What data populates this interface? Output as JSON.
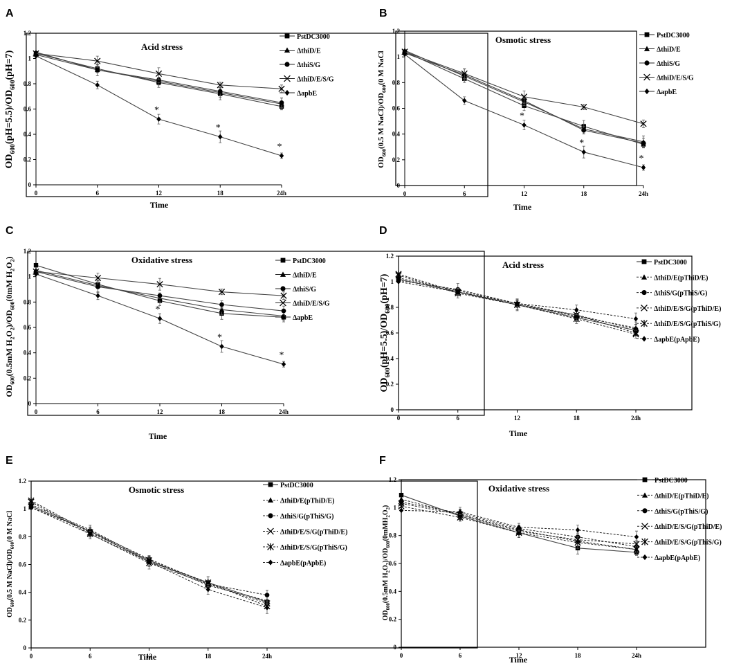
{
  "chart_data": [
    {
      "panel": "A",
      "type": "line",
      "title": "Acid stress",
      "xlabel": "Time",
      "ylabel": {
        "main": "OD",
        "sub1": "600",
        "mid": "(pH=5.5)/OD",
        "sub2": "600",
        "tail": "(pH=7)"
      },
      "x": [
        0,
        6,
        12,
        18,
        24
      ],
      "x_tick_labels": [
        "0",
        "6",
        "12",
        "18",
        "24h"
      ],
      "ylim": [
        0,
        1.2
      ],
      "y_ticks": [
        "0",
        "0.2",
        "0.4",
        "0.6",
        "0.8",
        "1",
        "1.2"
      ],
      "series": [
        {
          "name": "PstDC3000",
          "marker": "square",
          "dashed": false,
          "values": [
            1.04,
            0.92,
            0.81,
            0.72,
            0.62
          ]
        },
        {
          "name": "ΔthiD/E",
          "marker": "triangle",
          "dashed": false,
          "values": [
            1.05,
            0.91,
            0.82,
            0.73,
            0.64
          ]
        },
        {
          "name": "ΔthiS/G",
          "marker": "circle",
          "dashed": false,
          "values": [
            1.03,
            0.91,
            0.83,
            0.74,
            0.65
          ]
        },
        {
          "name": "ΔthiD/E/S/G",
          "marker": "x",
          "dashed": false,
          "values": [
            1.04,
            0.98,
            0.88,
            0.79,
            0.76
          ]
        },
        {
          "name": "ΔapbE",
          "marker": "diamond",
          "dashed": false,
          "values": [
            1.02,
            0.79,
            0.52,
            0.38,
            0.23
          ]
        }
      ],
      "annotations": [
        "*",
        "*",
        "*"
      ]
    },
    {
      "panel": "B",
      "type": "line",
      "title": "Osmotic stress",
      "xlabel": "Time",
      "ylabel": {
        "main": "OD",
        "sub1": "600",
        "mid": "(0.5 M NaCl)/OD",
        "sub2": "600",
        "tail": "(0 M NaCl"
      },
      "x": [
        0,
        6,
        12,
        18,
        24
      ],
      "x_tick_labels": [
        "0",
        "6",
        "12",
        "18",
        "24h"
      ],
      "ylim": [
        0,
        1.2
      ],
      "y_ticks": [
        "0",
        "0.2",
        "0.4",
        "0.6",
        "0.8",
        "1",
        "1.2"
      ],
      "series": [
        {
          "name": "PstDC3000",
          "marker": "square",
          "dashed": false,
          "values": [
            1.04,
            0.83,
            0.62,
            0.46,
            0.32
          ]
        },
        {
          "name": "ΔthiD/E",
          "marker": "triangle",
          "dashed": false,
          "values": [
            1.05,
            0.85,
            0.65,
            0.44,
            0.34
          ]
        },
        {
          "name": "ΔthiS/G",
          "marker": "circle",
          "dashed": false,
          "values": [
            1.03,
            0.86,
            0.66,
            0.43,
            0.33
          ]
        },
        {
          "name": "ΔthiD/E/S/G",
          "marker": "x",
          "dashed": false,
          "values": [
            1.04,
            0.87,
            0.69,
            0.61,
            0.48
          ]
        },
        {
          "name": "ΔapbE",
          "marker": "diamond",
          "dashed": false,
          "values": [
            1.02,
            0.66,
            0.47,
            0.26,
            0.14
          ]
        }
      ],
      "annotations": [
        "*",
        "*",
        "*"
      ]
    },
    {
      "panel": "C",
      "type": "line",
      "title": "Oxidative stress",
      "xlabel": "Time",
      "ylabel": {
        "main": "OD",
        "sub1": "600",
        "mid": "(0.5mM H",
        "sub2": "2",
        "tail": "O",
        "sub3": "2",
        "tail2": ")/OD",
        "sub4": "600",
        "tail3": "(0mM H",
        "sub5": "2",
        "tail4": "O",
        "sub6": "2",
        "tail5": ")"
      },
      "x": [
        0,
        6,
        12,
        18,
        24
      ],
      "x_tick_labels": [
        "0",
        "6",
        "12",
        "18",
        "24h"
      ],
      "ylim": [
        0,
        1.2
      ],
      "y_ticks": [
        "0",
        "0.2",
        "0.4",
        "0.6",
        "0.8",
        "1",
        "1.2"
      ],
      "series": [
        {
          "name": "PstDC3000",
          "marker": "square",
          "dashed": false,
          "values": [
            1.09,
            0.94,
            0.81,
            0.71,
            0.68
          ]
        },
        {
          "name": "ΔthiD/E",
          "marker": "triangle",
          "dashed": false,
          "values": [
            1.05,
            0.93,
            0.83,
            0.74,
            0.69
          ]
        },
        {
          "name": "ΔthiS/G",
          "marker": "circle",
          "dashed": false,
          "values": [
            1.04,
            0.92,
            0.85,
            0.78,
            0.73
          ]
        },
        {
          "name": "ΔthiD/E/S/G",
          "marker": "x",
          "dashed": false,
          "values": [
            1.04,
            0.99,
            0.94,
            0.88,
            0.85
          ]
        },
        {
          "name": "ΔapbE",
          "marker": "diamond",
          "dashed": false,
          "values": [
            1.02,
            0.85,
            0.67,
            0.45,
            0.31
          ]
        }
      ],
      "annotations": [
        "*",
        "*",
        "*"
      ]
    },
    {
      "panel": "D",
      "type": "line",
      "title": "Acid stress",
      "xlabel": "Time",
      "ylabel": {
        "main": "OD",
        "sub1": "600",
        "mid": "(pH=5.5)/OD",
        "sub2": "600",
        "tail": "(pH=7)"
      },
      "x": [
        0,
        6,
        12,
        18,
        24
      ],
      "x_tick_labels": [
        "0",
        "6",
        "12",
        "18",
        "24h"
      ],
      "ylim": [
        0,
        1.2
      ],
      "y_ticks": [
        "0",
        "0.2",
        "0.4",
        "0.6",
        "0.8",
        "1",
        "1.2"
      ],
      "series": [
        {
          "name": "PstDC3000",
          "marker": "square",
          "dashed": false,
          "values": [
            1.02,
            0.92,
            0.82,
            0.72,
            0.62
          ]
        },
        {
          "name": "ΔthiD/E(pThiD/E)",
          "marker": "triangle",
          "dashed": true,
          "values": [
            1.03,
            0.93,
            0.83,
            0.73,
            0.64
          ]
        },
        {
          "name": "ΔthiS/G(pThiS/G)",
          "marker": "circle",
          "dashed": true,
          "values": [
            1.01,
            0.94,
            0.83,
            0.74,
            0.63
          ]
        },
        {
          "name": "ΔthiD/E/S/G(pThiD/E)",
          "marker": "x",
          "dashed": true,
          "values": [
            1.05,
            0.91,
            0.82,
            0.71,
            0.59
          ]
        },
        {
          "name": "ΔthiD/E/S/G(pThiS/G)",
          "marker": "asterisk",
          "dashed": true,
          "values": [
            1.06,
            0.92,
            0.82,
            0.74,
            0.6
          ]
        },
        {
          "name": "ΔapbE(pApbE)",
          "marker": "diamond",
          "dashed": true,
          "values": [
            1.0,
            0.92,
            0.83,
            0.78,
            0.71
          ]
        }
      ]
    },
    {
      "panel": "E",
      "type": "line",
      "title": "Osmotic stress",
      "xlabel": "Time",
      "ylabel": {
        "main": "OD",
        "sub1": "600",
        "mid": "(0.5 M NaCl)/OD",
        "sub2": "600",
        "tail": "(0 M NaCl"
      },
      "x": [
        0,
        6,
        12,
        18,
        24
      ],
      "x_tick_labels": [
        "0",
        "6",
        "12",
        "18",
        "24h"
      ],
      "ylim": [
        0,
        1.2
      ],
      "y_ticks": [
        "0",
        "0.2",
        "0.4",
        "0.6",
        "0.8",
        "1",
        "1.2"
      ],
      "series": [
        {
          "name": "PstDC3000",
          "marker": "square",
          "dashed": false,
          "values": [
            1.02,
            0.84,
            0.62,
            0.47,
            0.33
          ]
        },
        {
          "name": "ΔthiD/E(pThiD/E)",
          "marker": "triangle",
          "dashed": true,
          "values": [
            1.03,
            0.85,
            0.63,
            0.45,
            0.34
          ]
        },
        {
          "name": "ΔthiS/G(pThiS/G)",
          "marker": "circle",
          "dashed": true,
          "values": [
            1.01,
            0.84,
            0.64,
            0.46,
            0.38
          ]
        },
        {
          "name": "ΔthiD/E/S/G(pThiD/E)",
          "marker": "x",
          "dashed": true,
          "values": [
            1.05,
            0.82,
            0.61,
            0.46,
            0.32
          ]
        },
        {
          "name": "ΔthiD/E/S/G(pThiS/G)",
          "marker": "asterisk",
          "dashed": true,
          "values": [
            1.06,
            0.83,
            0.63,
            0.47,
            0.3
          ]
        },
        {
          "name": "ΔapbE(pApbE)",
          "marker": "diamond",
          "dashed": true,
          "values": [
            1.01,
            0.82,
            0.62,
            0.42,
            0.29
          ]
        }
      ]
    },
    {
      "panel": "F",
      "type": "line",
      "title": "Oxidative stress",
      "xlabel": "Time",
      "ylabel": {
        "main": "OD",
        "sub1": "600",
        "mid": "(0.5mM H",
        "sub2": "2",
        "tail": "O",
        "sub3": "2",
        "tail2": ")/OD",
        "sub4": "600",
        "tail3": "(0mMH",
        "sub5": "2",
        "tail4": "O",
        "sub6": "2",
        "tail5": ")"
      },
      "x": [
        0,
        6,
        12,
        18,
        24
      ],
      "x_tick_labels": [
        "0",
        "6",
        "12",
        "18",
        "24h"
      ],
      "ylim": [
        0,
        1.2
      ],
      "y_ticks": [
        "0",
        "0.2",
        "0.4",
        "0.6",
        "0.8",
        "1",
        "1.2"
      ],
      "series": [
        {
          "name": "PstDC3000",
          "marker": "square",
          "dashed": false,
          "values": [
            1.09,
            0.94,
            0.82,
            0.71,
            0.68
          ]
        },
        {
          "name": "ΔthiD/E(pThiD/E)",
          "marker": "triangle",
          "dashed": true,
          "values": [
            1.06,
            0.95,
            0.84,
            0.76,
            0.7
          ]
        },
        {
          "name": "ΔthiS/G(pThiS/G)",
          "marker": "circle",
          "dashed": true,
          "values": [
            1.04,
            0.96,
            0.85,
            0.79,
            0.72
          ]
        },
        {
          "name": "ΔthiD/E/S/G(pThiD/E)",
          "marker": "x",
          "dashed": true,
          "values": [
            1.03,
            0.95,
            0.83,
            0.77,
            0.74
          ]
        },
        {
          "name": "ΔthiD/E/S/G(pThiS/G)",
          "marker": "asterisk",
          "dashed": true,
          "values": [
            1.01,
            0.93,
            0.82,
            0.75,
            0.7
          ]
        },
        {
          "name": "ΔapbE(pApbE)",
          "marker": "diamond",
          "dashed": true,
          "values": [
            0.98,
            0.97,
            0.86,
            0.84,
            0.79
          ]
        }
      ]
    }
  ]
}
